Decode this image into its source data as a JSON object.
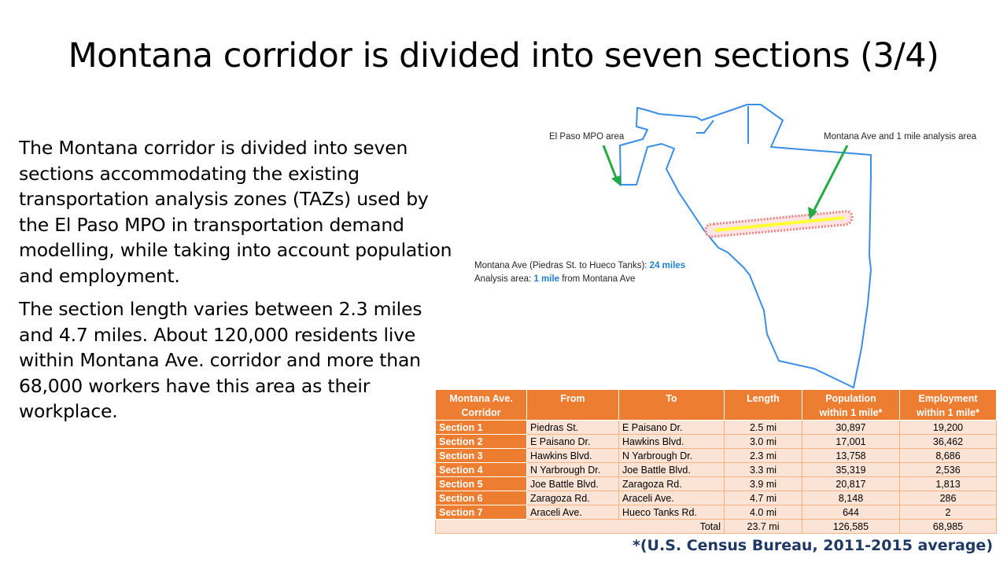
{
  "slide": {
    "title": "Montana corridor is divided into seven sections (3/4)",
    "paragraphs": [
      "The Montana corridor is divided into seven sections accommodating the existing transportation analysis zones (TAZs) used by the El Paso MPO in transportation demand modelling, while taking into account population and employment.",
      "The section length varies between 2.3 miles and 4.7 miles. About 120,000 residents live within Montana Ave. corridor and more than 68,000 workers have this area as their workplace."
    ],
    "footnote": "*(U.S. Census Bureau, 2011-2015 average)"
  },
  "map": {
    "label_mpo": "El Paso MPO area",
    "label_analysis": "Montana Ave and 1 mile analysis area",
    "legend_line1_prefix": "Montana Ave (Piedras St. to Hueco Tanks): ",
    "legend_line1_value": "24 miles",
    "legend_line2_prefix": "Analysis area: ",
    "legend_line2_value": "1 mile",
    "legend_line2_suffix": " from Montana Ave",
    "colors": {
      "boundary": "#3b8ee8",
      "road": "#ffff33",
      "buffer": "#f08080",
      "arrow": "#22aa44",
      "highlight": "#1f7fd4"
    }
  },
  "table": {
    "headers": [
      "Montana Ave. Corridor",
      "From",
      "To",
      "Length",
      "Population within 1 mile*",
      "Employment within 1 mile*"
    ],
    "header_lines": [
      [
        "Montana Ave.",
        "Corridor"
      ],
      [
        "From"
      ],
      [
        "To"
      ],
      [
        "Length"
      ],
      [
        "Population",
        "within 1 mile*"
      ],
      [
        "Employment",
        "within 1 mile*"
      ]
    ],
    "rows": [
      {
        "section": "Section 1",
        "from": "Piedras St.",
        "to": "E Paisano Dr.",
        "length": "2.5 mi",
        "population": "30,897",
        "employment": "19,200"
      },
      {
        "section": "Section 2",
        "from": "E Paisano Dr.",
        "to": "Hawkins Blvd.",
        "length": "3.0 mi",
        "population": "17,001",
        "employment": "36,462"
      },
      {
        "section": "Section 3",
        "from": "Hawkins Blvd.",
        "to": "N Yarbrough Dr.",
        "length": "2.3 mi",
        "population": "13,758",
        "employment": "8,686"
      },
      {
        "section": "Section 4",
        "from": "N Yarbrough Dr.",
        "to": "Joe Battle Blvd.",
        "length": "3.3 mi",
        "population": "35,319",
        "employment": "2,536"
      },
      {
        "section": "Section 5",
        "from": "Joe Battle Blvd.",
        "to": "Zaragoza Rd.",
        "length": "3.9 mi",
        "population": "20,817",
        "employment": "1,813"
      },
      {
        "section": "Section 6",
        "from": "Zaragoza Rd.",
        "to": "Araceli Ave.",
        "length": "4.7 mi",
        "population": "8,148",
        "employment": "286"
      },
      {
        "section": "Section 7",
        "from": "Araceli Ave.",
        "to": "Hueco Tanks Rd.",
        "length": "4.0 mi",
        "population": "644",
        "employment": "2"
      }
    ],
    "total": {
      "label": "Total",
      "length": "23.7 mi",
      "population": "126,585",
      "employment": "68,985"
    },
    "colors": {
      "header": "#ed7d31",
      "cell": "#fbe4d5"
    }
  }
}
